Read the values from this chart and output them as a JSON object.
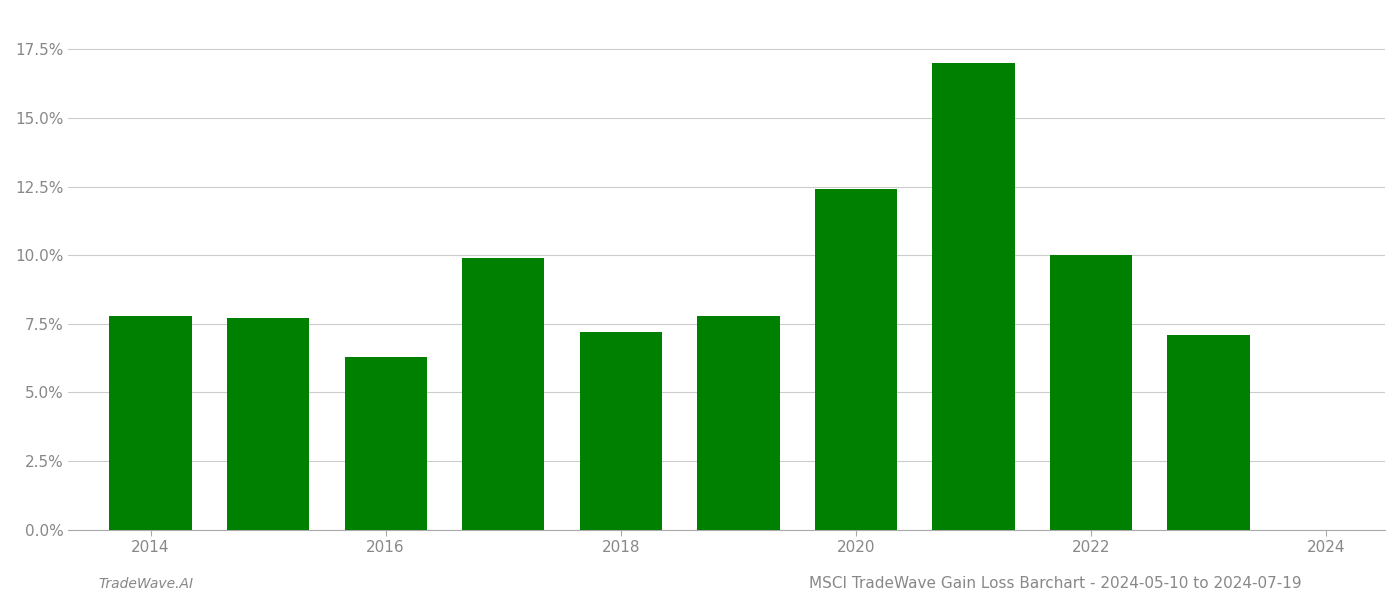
{
  "years": [
    2014,
    2015,
    2016,
    2017,
    2018,
    2019,
    2020,
    2021,
    2022,
    2023
  ],
  "values": [
    0.078,
    0.077,
    0.063,
    0.099,
    0.072,
    0.078,
    0.124,
    0.17,
    0.1,
    0.071
  ],
  "bar_color": "#008000",
  "background_color": "#ffffff",
  "grid_color": "#cccccc",
  "title": "MSCI TradeWave Gain Loss Barchart - 2024-05-10 to 2024-07-19",
  "footer_left": "TradeWave.AI",
  "ylim_min": 0.0,
  "ylim_max": 0.1875,
  "yticks": [
    0.0,
    0.025,
    0.05,
    0.075,
    0.1,
    0.125,
    0.15,
    0.175
  ],
  "ytick_labels": [
    "0.0%",
    "2.5%",
    "5.0%",
    "7.5%",
    "10.0%",
    "12.5%",
    "15.0%",
    "17.5%"
  ],
  "xtick_labels": [
    "2014",
    "2016",
    "2018",
    "2020",
    "2022",
    "2024"
  ],
  "title_fontsize": 11,
  "footer_fontsize": 10,
  "tick_fontsize": 11,
  "axis_color": "#aaaaaa",
  "text_color": "#888888"
}
